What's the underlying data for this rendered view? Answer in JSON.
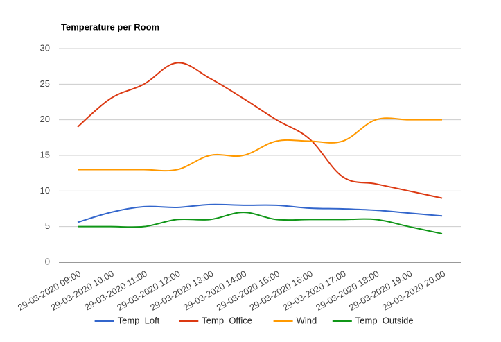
{
  "chart_data": {
    "type": "line",
    "title": "Temperature per Room",
    "categories": [
      "29-03-2020 09:00",
      "29-03-2020 10:00",
      "29-03-2020 11:00",
      "29-03-2020 12:00",
      "29-03-2020 13:00",
      "29-03-2020 14:00",
      "29-03-2020 15:00",
      "29-03-2020 16:00",
      "29-03-2020 17:00",
      "29-03-2020 18:00",
      "29-03-2020 19:00",
      "29-03-2020 20:00"
    ],
    "series": [
      {
        "name": "Temp_Loft",
        "color": "#3366cc",
        "values": [
          5.6,
          7,
          7.8,
          7.7,
          8.1,
          8,
          8,
          7.6,
          7.5,
          7.3,
          6.9,
          6.5
        ]
      },
      {
        "name": "Temp_Office",
        "color": "#dc3912",
        "values": [
          19,
          23,
          25,
          28,
          25.8,
          23,
          20,
          17.3,
          12,
          11,
          10,
          9
        ]
      },
      {
        "name": "Wind",
        "color": "#ff9900",
        "values": [
          13,
          13,
          13,
          13,
          15,
          15,
          17,
          17,
          17,
          20,
          20,
          20
        ]
      },
      {
        "name": "Temp_Outside",
        "color": "#109618",
        "values": [
          5,
          5,
          5,
          6,
          6,
          7,
          6,
          6,
          6,
          6,
          5,
          4
        ]
      }
    ],
    "ylim": [
      0,
      30
    ],
    "yticks": [
      0,
      5,
      10,
      15,
      20,
      25,
      30
    ],
    "grid": true,
    "legend": "bottom"
  }
}
